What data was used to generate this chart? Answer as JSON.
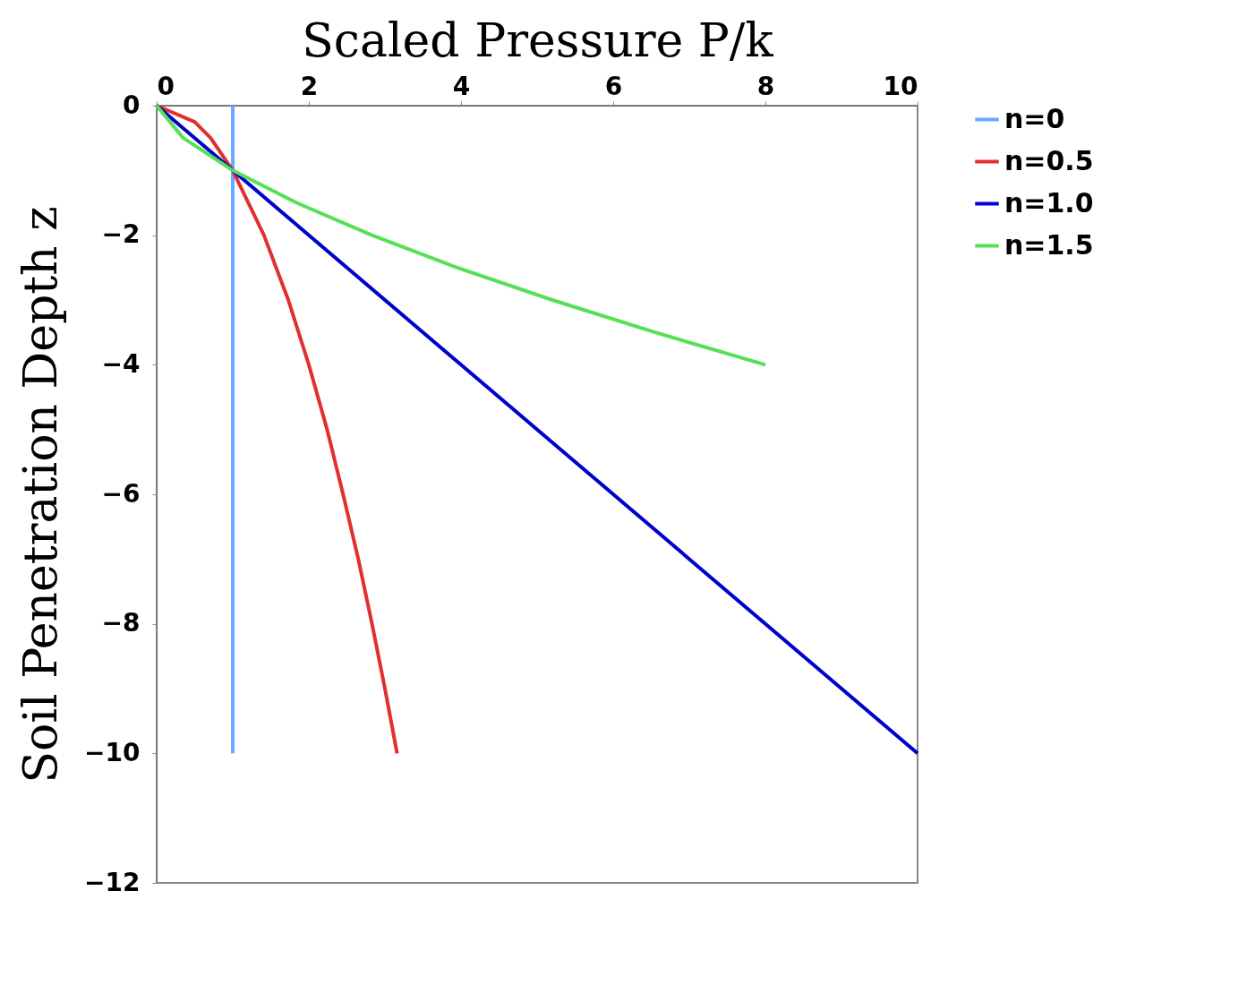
{
  "chart_data": {
    "type": "line",
    "xlabel": "Scaled Pressure P/k",
    "ylabel": "Soil Penetration Depth z",
    "xlim": [
      0,
      10
    ],
    "xticks": [
      0,
      2,
      4,
      6,
      8,
      10
    ],
    "ylim": [
      -12,
      0
    ],
    "yticks": [
      -12,
      -10,
      -8,
      -6,
      -4,
      -2,
      0
    ],
    "grid": false,
    "legend": "right",
    "marker": "none",
    "line_style": "solid",
    "series": [
      {
        "name": "n=0",
        "color": "#66aaff",
        "x": [
          1,
          1
        ],
        "values": [
          0,
          -10
        ]
      },
      {
        "name": "n=0.5",
        "color": "#e03030",
        "x": [
          0,
          0.5,
          0.71,
          1,
          1.41,
          1.73,
          2,
          2.24,
          2.45,
          2.65,
          2.83,
          3,
          3.16
        ],
        "values": [
          0,
          -0.25,
          -0.5,
          -1,
          -2,
          -3,
          -4,
          -5,
          -6,
          -7,
          -8,
          -9,
          -10
        ]
      },
      {
        "name": "n=1.0",
        "color": "#0000cc",
        "x": [
          0,
          10
        ],
        "values": [
          0,
          -10
        ]
      },
      {
        "name": "n=1.5",
        "color": "#55e055",
        "x": [
          0,
          0.35,
          1,
          1.84,
          2.83,
          3.95,
          5.2,
          6.55,
          8
        ],
        "values": [
          0,
          -0.5,
          -1,
          -1.5,
          -2,
          -2.5,
          -3,
          -3.5,
          -4
        ]
      }
    ]
  }
}
